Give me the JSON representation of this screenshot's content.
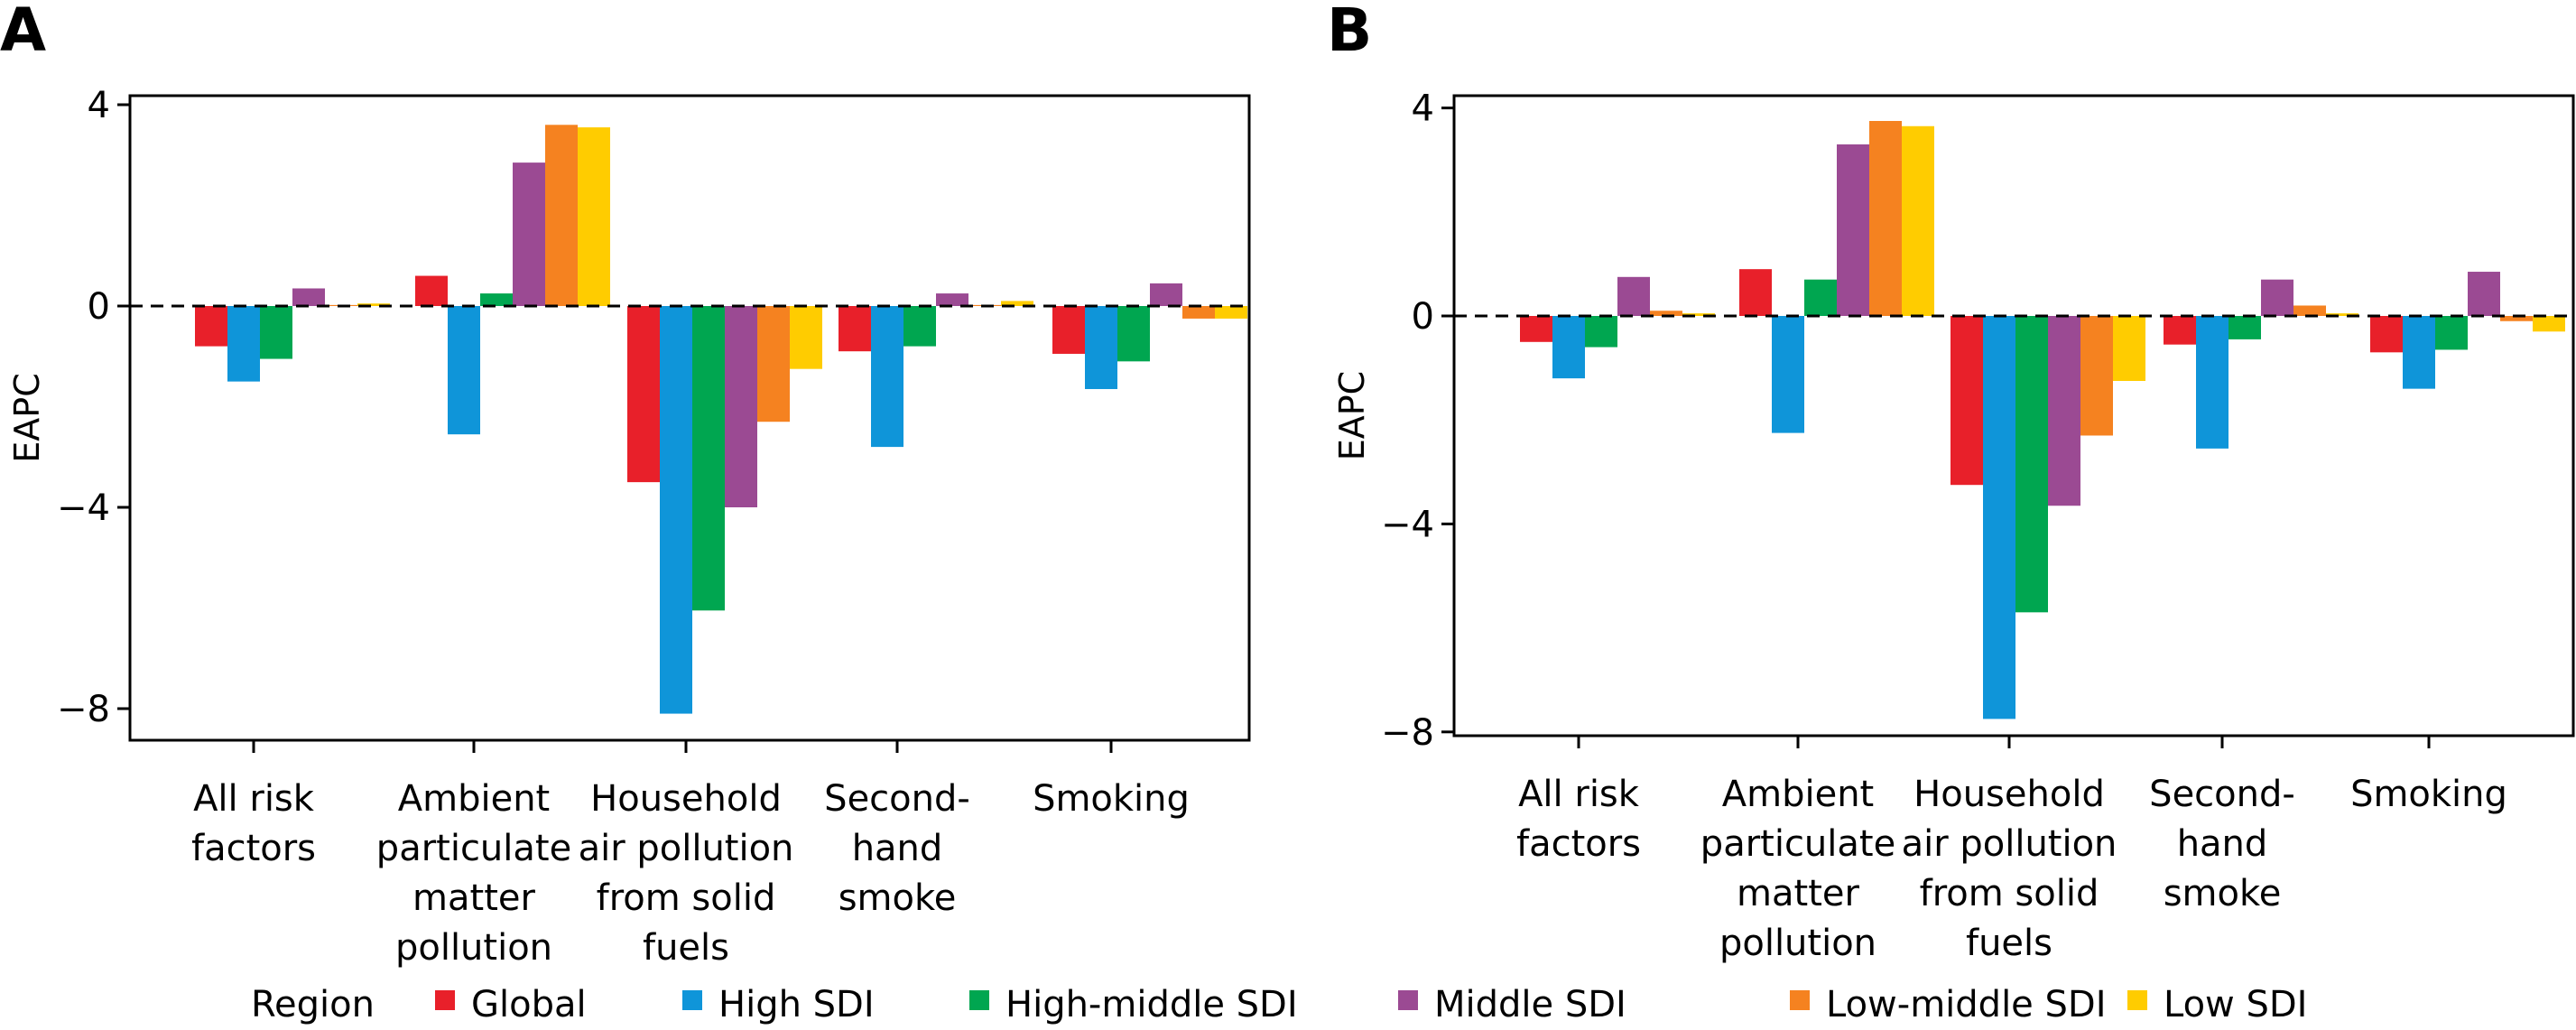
{
  "chart_data": [
    {
      "panel": "A",
      "type": "bar",
      "ylabel": "EAPC",
      "ylim": [
        -8.6,
        4.2
      ],
      "yticks": [
        4,
        0,
        -4,
        -8
      ],
      "categories": [
        [
          "All risk",
          "factors"
        ],
        [
          "Ambient",
          "particulate",
          "matter",
          "pollution"
        ],
        [
          "Household",
          "air pollution",
          "from solid",
          "fuels"
        ],
        [
          "Second-",
          "hand",
          "smoke"
        ],
        [
          "Smoking"
        ]
      ],
      "series": [
        {
          "name": "Global",
          "color": "#e8202a",
          "values": [
            -0.8,
            0.6,
            -3.5,
            -0.9,
            -0.95
          ]
        },
        {
          "name": "High SDI",
          "color": "#0f95d9",
          "values": [
            -1.5,
            -2.55,
            -8.1,
            -2.8,
            -1.65
          ]
        },
        {
          "name": "High-middle SDI",
          "color": "#00a650",
          "values": [
            -1.05,
            0.25,
            -6.05,
            -0.8,
            -1.1
          ]
        },
        {
          "name": "Middle SDI",
          "color": "#9b4a93",
          "values": [
            0.35,
            2.85,
            -4.0,
            0.25,
            0.45
          ]
        },
        {
          "name": "Low-middle SDI",
          "color": "#f58220",
          "values": [
            0.02,
            3.6,
            -2.3,
            0.02,
            -0.25
          ]
        },
        {
          "name": "Low SDI",
          "color": "#ffcc00",
          "values": [
            0.05,
            3.55,
            -1.25,
            0.1,
            -0.25
          ]
        }
      ]
    },
    {
      "panel": "B",
      "type": "bar",
      "ylabel": "EAPC",
      "ylim": [
        -8.2,
        4.2
      ],
      "yticks": [
        4,
        0,
        -4,
        -8
      ],
      "categories": [
        [
          "All risk",
          "factors"
        ],
        [
          "Ambient",
          "particulate",
          "matter",
          "pollution"
        ],
        [
          "Household",
          "air pollution",
          "from solid",
          "fuels"
        ],
        [
          "Second-",
          "hand",
          "smoke"
        ],
        [
          "Smoking"
        ]
      ],
      "series": [
        {
          "name": "Global",
          "color": "#e8202a",
          "values": [
            -0.5,
            0.9,
            -3.25,
            -0.55,
            -0.7
          ]
        },
        {
          "name": "High SDI",
          "color": "#0f95d9",
          "values": [
            -1.2,
            -2.25,
            -7.75,
            -2.55,
            -1.4
          ]
        },
        {
          "name": "High-middle SDI",
          "color": "#00a650",
          "values": [
            -0.6,
            0.7,
            -5.7,
            -0.45,
            -0.65
          ]
        },
        {
          "name": "Middle SDI",
          "color": "#9b4a93",
          "values": [
            0.75,
            3.3,
            -3.65,
            0.7,
            0.85
          ]
        },
        {
          "name": "Low-middle SDI",
          "color": "#f58220",
          "values": [
            0.1,
            3.75,
            -2.3,
            0.2,
            -0.1
          ]
        },
        {
          "name": "Low SDI",
          "color": "#ffcc00",
          "values": [
            0.05,
            3.65,
            -1.25,
            0.05,
            -0.3
          ]
        }
      ]
    }
  ],
  "legend": {
    "title": "Region",
    "items": [
      {
        "label": "Global",
        "color": "#e8202a"
      },
      {
        "label": "High SDI",
        "color": "#0f95d9"
      },
      {
        "label": "High-middle SDI",
        "color": "#00a650"
      },
      {
        "label": "Middle SDI",
        "color": "#9b4a93"
      },
      {
        "label": "Low-middle SDI",
        "color": "#f58220"
      },
      {
        "label": "Low SDI",
        "color": "#ffcc00"
      }
    ]
  }
}
